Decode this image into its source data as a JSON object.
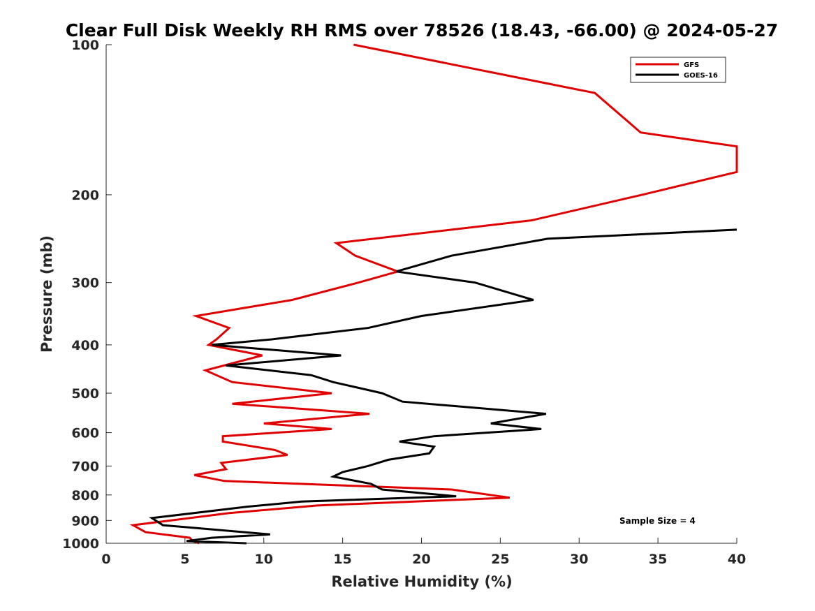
{
  "chart_data": {
    "type": "line",
    "title": "Clear Full Disk Weekly RH RMS over 78526 (18.43, -66.00) @ 2024-05-27",
    "xlabel": "Relative Humidity (%)",
    "ylabel": "Pressure (mb)",
    "xlim": [
      0,
      40
    ],
    "ylim": [
      100,
      1000
    ],
    "yscale": "log",
    "yreversed": true,
    "xticks": [
      0,
      5,
      10,
      15,
      20,
      25,
      30,
      35,
      40
    ],
    "yticks": [
      100,
      200,
      300,
      400,
      500,
      600,
      700,
      800,
      900,
      1000
    ],
    "legend_position": "top-right",
    "annotation": "Sample Size = 4",
    "series": [
      {
        "name": "GFS",
        "color": "#e00000",
        "points": [
          [
            15.7,
            100
          ],
          [
            31.0,
            125
          ],
          [
            33.9,
            150
          ],
          [
            40.0,
            160
          ],
          [
            40.0,
            180
          ],
          [
            34.0,
            200
          ],
          [
            27.0,
            225
          ],
          [
            14.6,
            250
          ],
          [
            15.8,
            265
          ],
          [
            18.5,
            285
          ],
          [
            16.0,
            300
          ],
          [
            11.8,
            325
          ],
          [
            5.7,
            350
          ],
          [
            7.8,
            370
          ],
          [
            7.0,
            390
          ],
          [
            6.5,
            400
          ],
          [
            9.9,
            420
          ],
          [
            6.3,
            450
          ],
          [
            8.0,
            475
          ],
          [
            14.3,
            500
          ],
          [
            8.0,
            525
          ],
          [
            16.7,
            550
          ],
          [
            10.0,
            575
          ],
          [
            14.3,
            590
          ],
          [
            7.4,
            610
          ],
          [
            7.4,
            625
          ],
          [
            10.7,
            650
          ],
          [
            11.5,
            665
          ],
          [
            7.3,
            690
          ],
          [
            7.6,
            710
          ],
          [
            5.6,
            730
          ],
          [
            7.5,
            750
          ],
          [
            21.9,
            780
          ],
          [
            25.6,
            810
          ],
          [
            13.4,
            840
          ],
          [
            7.8,
            870
          ],
          [
            1.7,
            920
          ],
          [
            2.5,
            950
          ],
          [
            5.3,
            975
          ],
          [
            5.5,
            990
          ],
          [
            5.9,
            1000
          ]
        ]
      },
      {
        "name": "GOES-16",
        "color": "#000000",
        "points": [
          [
            40.0,
            235
          ],
          [
            28.0,
            245
          ],
          [
            21.9,
            265
          ],
          [
            18.4,
            285
          ],
          [
            23.4,
            300
          ],
          [
            27.1,
            325
          ],
          [
            20.0,
            350
          ],
          [
            16.6,
            370
          ],
          [
            10.5,
            390
          ],
          [
            6.7,
            400
          ],
          [
            14.9,
            420
          ],
          [
            7.6,
            440
          ],
          [
            13.0,
            460
          ],
          [
            14.4,
            475
          ],
          [
            17.5,
            500
          ],
          [
            18.8,
            520
          ],
          [
            27.9,
            550
          ],
          [
            24.4,
            575
          ],
          [
            27.6,
            590
          ],
          [
            20.8,
            610
          ],
          [
            18.6,
            625
          ],
          [
            20.8,
            640
          ],
          [
            20.5,
            660
          ],
          [
            17.9,
            680
          ],
          [
            16.6,
            700
          ],
          [
            15.0,
            720
          ],
          [
            14.4,
            735
          ],
          [
            16.8,
            760
          ],
          [
            17.5,
            780
          ],
          [
            22.2,
            805
          ],
          [
            12.4,
            825
          ],
          [
            8.9,
            845
          ],
          [
            2.9,
            890
          ],
          [
            3.6,
            920
          ],
          [
            10.4,
            960
          ],
          [
            6.7,
            975
          ],
          [
            5.1,
            990
          ],
          [
            8.9,
            1000
          ]
        ]
      }
    ]
  }
}
